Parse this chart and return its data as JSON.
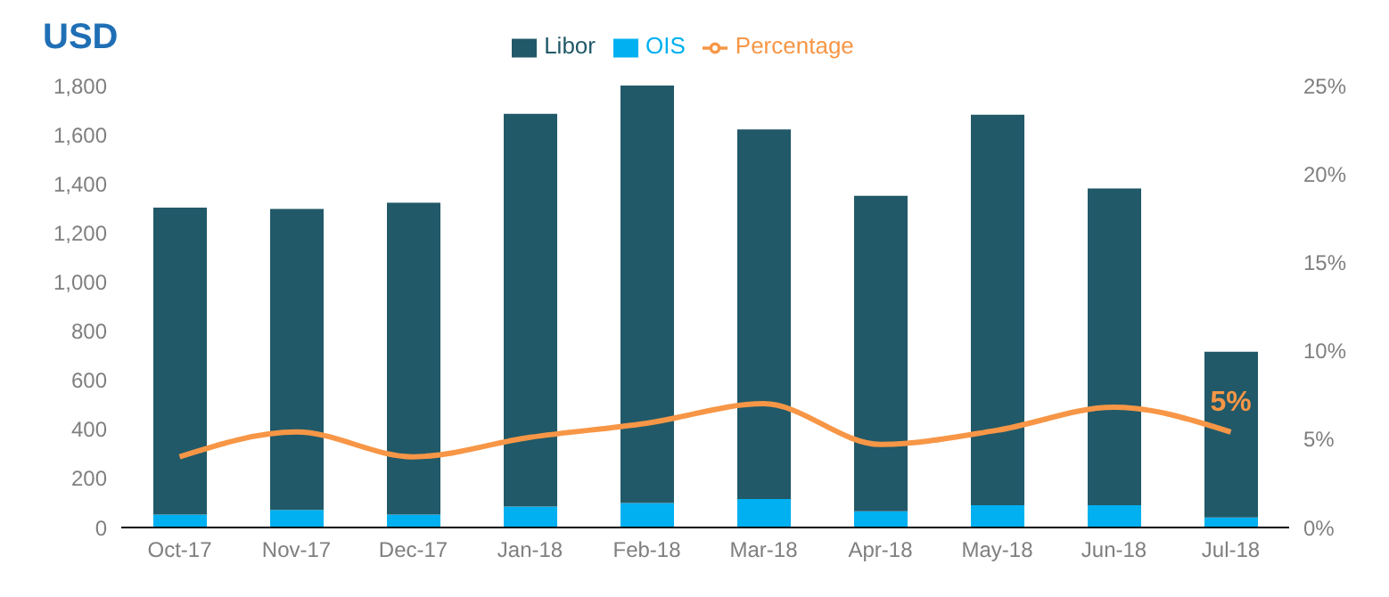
{
  "chart_data": {
    "type": "bar",
    "title": "USD",
    "categories": [
      "Oct-17",
      "Nov-17",
      "Dec-17",
      "Jan-18",
      "Feb-18",
      "Mar-18",
      "Apr-18",
      "May-18",
      "Jun-18",
      "Jul-18"
    ],
    "stacked": true,
    "series": [
      {
        "name": "OIS",
        "color": "#00b0f0",
        "values": [
          53,
          72,
          53,
          85,
          100,
          116,
          66,
          91,
          91,
          41
        ]
      },
      {
        "name": "Libor",
        "color": "#215968",
        "values": [
          1250,
          1225,
          1270,
          1600,
          1700,
          1505,
          1285,
          1590,
          1290,
          675
        ]
      },
      {
        "name": "Percentage",
        "type": "line",
        "axis": "y2",
        "color": "#f79646",
        "marker": "none",
        "values": [
          4.0,
          5.4,
          4.0,
          5.1,
          5.9,
          7.0,
          4.7,
          5.5,
          6.8,
          5.4
        ],
        "value_labels": [
          null,
          null,
          null,
          null,
          null,
          null,
          null,
          null,
          null,
          "5%"
        ]
      }
    ],
    "ylim": [
      0,
      1800
    ],
    "yticks": [
      0,
      200,
      400,
      600,
      800,
      {
        "value": 1000,
        "label": "1,000"
      },
      {
        "value": 1200,
        "label": "1,200"
      },
      {
        "value": 1400,
        "label": "1,400"
      },
      {
        "value": 1600,
        "label": "1,600"
      },
      {
        "value": 1800,
        "label": "1,800"
      }
    ],
    "y2lim": [
      0,
      25
    ],
    "y2ticks": [
      {
        "value": 0,
        "label": "0%"
      },
      {
        "value": 5,
        "label": "5%"
      },
      {
        "value": 10,
        "label": "10%"
      },
      {
        "value": 15,
        "label": "15%"
      },
      {
        "value": 20,
        "label": "20%"
      },
      {
        "value": 25,
        "label": "25%"
      }
    ],
    "grid": false,
    "legend": "top"
  }
}
